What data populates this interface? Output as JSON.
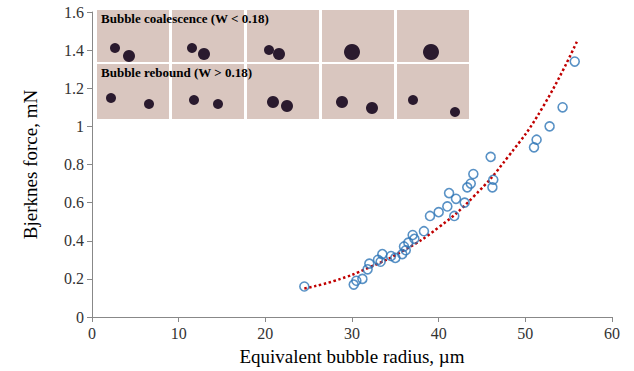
{
  "chart_data": {
    "type": "scatter",
    "x_label": "Equivalent bubble radius, µm",
    "y_label": "Bjerknes force, mN",
    "annotations": [
      "Bubble coalescence (W < 0.18)",
      "Bubble rebound (W > 0.18)"
    ],
    "xlim": [
      0,
      60
    ],
    "xticks": [
      0,
      10,
      20,
      30,
      40,
      50,
      60
    ],
    "ylim": [
      0,
      1.6
    ],
    "yticks": [
      0,
      0.2,
      0.4,
      0.6,
      0.8,
      1,
      1.2,
      1.4,
      1.6
    ],
    "grid": false,
    "series": [
      {
        "type": "scatter",
        "marker": "circle",
        "color": "#2e75b6",
        "x": [
          24.5,
          30.2,
          30.5,
          31.2,
          31.8,
          32,
          33,
          33.3,
          33.5,
          34.5,
          35,
          35.8,
          36,
          36.2,
          36.5,
          37,
          37.2,
          38.3,
          39,
          40,
          41,
          41.2,
          41.8,
          42,
          43,
          43.3,
          43.7,
          44,
          46,
          46.2,
          46.3,
          51,
          51.3,
          52.8,
          54.3,
          55.7
        ],
        "values": [
          0.16,
          0.17,
          0.19,
          0.2,
          0.25,
          0.28,
          0.3,
          0.29,
          0.33,
          0.32,
          0.31,
          0.33,
          0.37,
          0.35,
          0.39,
          0.43,
          0.41,
          0.45,
          0.53,
          0.55,
          0.58,
          0.65,
          0.53,
          0.62,
          0.6,
          0.68,
          0.7,
          0.75,
          0.84,
          0.68,
          0.72,
          0.89,
          0.93,
          1.0,
          1.1,
          1.34
        ]
      },
      {
        "type": "line",
        "line_style": "dotted",
        "color": "#c00000",
        "x": [
          24.5,
          28,
          32,
          36,
          40,
          44,
          48,
          52,
          56
        ],
        "values": [
          0.15,
          0.19,
          0.26,
          0.35,
          0.47,
          0.63,
          0.84,
          1.1,
          1.45
        ]
      }
    ]
  }
}
